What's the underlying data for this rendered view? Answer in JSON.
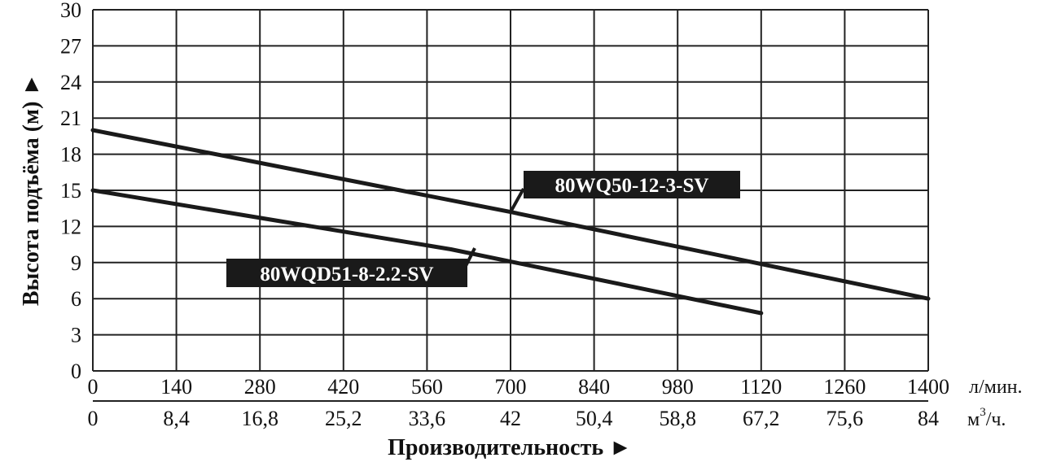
{
  "chart_data": {
    "type": "line",
    "xlabel": "Производительность ►",
    "ylabel": "Высота подъёма (м) ►",
    "xlim": [
      0,
      1400
    ],
    "ylim": [
      0,
      30
    ],
    "grid": true,
    "y_ticks": [
      "0",
      "3",
      "6",
      "9",
      "12",
      "15",
      "18",
      "21",
      "24",
      "27",
      "30"
    ],
    "x_ticks_lmin": [
      "0",
      "140",
      "280",
      "420",
      "560",
      "700",
      "840",
      "980",
      "1120",
      "1260",
      "1400"
    ],
    "x_ticks_m3h": [
      "0",
      "8,4",
      "16,8",
      "25,2",
      "33,6",
      "42",
      "50,4",
      "58,8",
      "67,2",
      "75,6",
      "84"
    ],
    "x_unit_lmin": "л/мин.",
    "x_unit_m3h_base": "м",
    "x_unit_m3h_sup": "3",
    "x_unit_m3h_tail": "/ч.",
    "series": [
      {
        "name": "80WQ50-12-3-SV",
        "x": [
          0,
          700,
          1400
        ],
        "y": [
          20,
          13.2,
          6
        ],
        "label_anchor": [
          700,
          13.2
        ],
        "color": "#1a1a1a"
      },
      {
        "name": "80WQD51-8-2.2-SV",
        "x": [
          0,
          600,
          1120
        ],
        "y": [
          15,
          10.1,
          4.8
        ],
        "label_anchor": [
          640,
          10.2
        ],
        "color": "#1a1a1a"
      }
    ]
  }
}
